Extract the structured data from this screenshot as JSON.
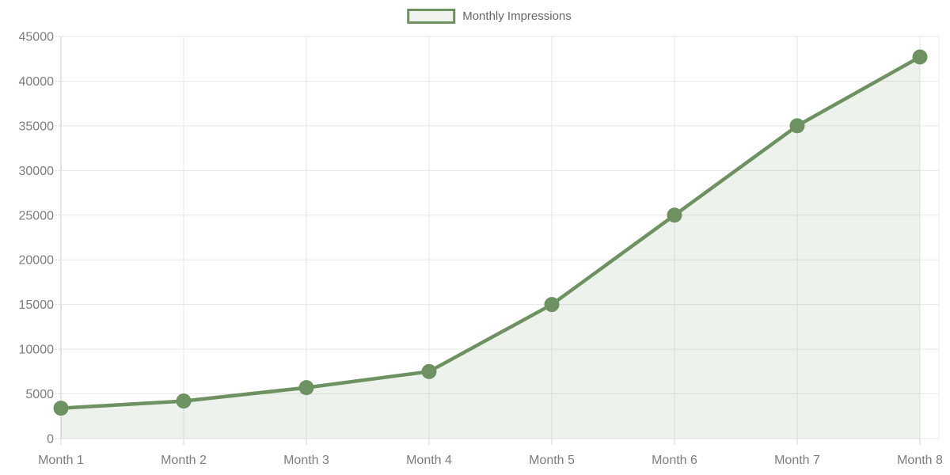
{
  "chart_data": {
    "type": "area",
    "categories": [
      "Month 1",
      "Month 2",
      "Month 3",
      "Month 4",
      "Month 5",
      "Month 6",
      "Month 7",
      "Month 8"
    ],
    "series": [
      {
        "name": "Monthly Impressions",
        "values": [
          3400,
          4200,
          5700,
          7500,
          15000,
          25000,
          35000,
          42700
        ]
      }
    ],
    "title": "",
    "xlabel": "",
    "ylabel": "",
    "ylim": [
      0,
      45000
    ],
    "ytick_step": 5000,
    "yticks": [
      0,
      5000,
      10000,
      15000,
      20000,
      25000,
      30000,
      35000,
      40000,
      45000
    ],
    "grid": true,
    "legend_position": "top-center",
    "colors": {
      "line": "#6d9160",
      "marker": "#6d9160",
      "area_fill": "rgba(109,145,96,0.12)",
      "gridline": "#e6e6e6",
      "axis_line": "#c9ccc6",
      "tick_mark": "#d4d4d4",
      "right_border": "#ededed",
      "tick_text": "#7d7d7d",
      "legend_text": "#666666",
      "legend_swatch_border": "#6d9160",
      "legend_swatch_fill": "#f1f3ee"
    }
  }
}
